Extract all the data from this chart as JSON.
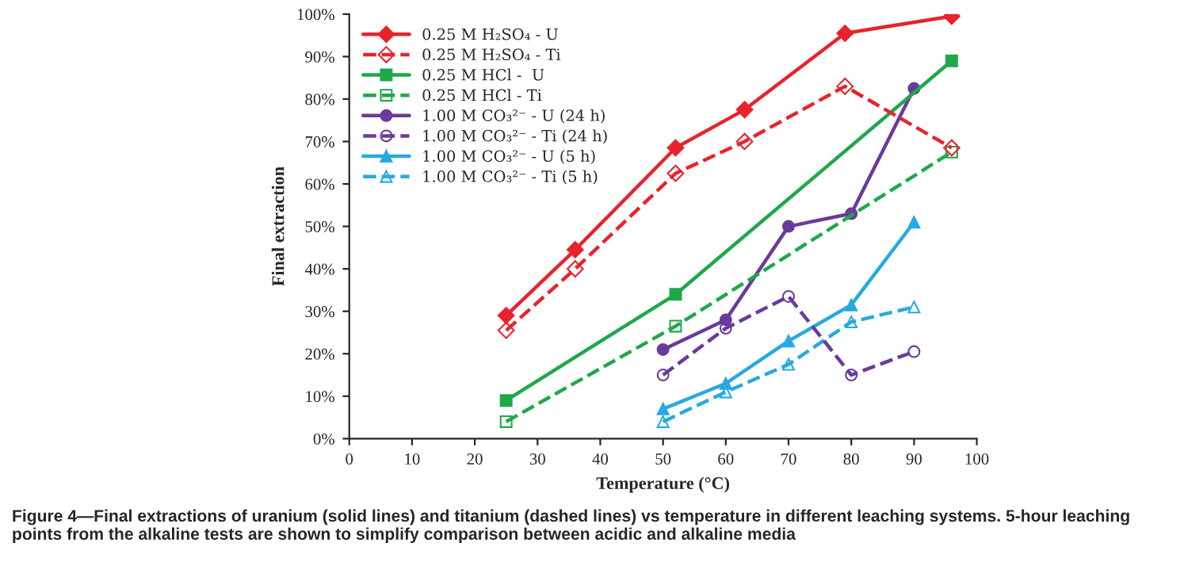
{
  "chart_data": {
    "type": "line",
    "xlabel": "Temperature (°C)",
    "ylabel": "Final extraction",
    "xlim": [
      0,
      100
    ],
    "xticks": [
      0,
      10,
      20,
      30,
      40,
      50,
      60,
      70,
      80,
      90,
      100
    ],
    "ylim": [
      0,
      100
    ],
    "yticks": [
      {
        "value": 0,
        "label": "0%"
      },
      {
        "value": 10,
        "label": "10%"
      },
      {
        "value": 20,
        "label": "20%"
      },
      {
        "value": 30,
        "label": "30%"
      },
      {
        "value": 40,
        "label": "40%"
      },
      {
        "value": 50,
        "label": "50%"
      },
      {
        "value": 60,
        "label": "60%"
      },
      {
        "value": 70,
        "label": "70%"
      },
      {
        "value": 80,
        "label": "80%"
      },
      {
        "value": 90,
        "label": "90%"
      },
      {
        "value": 100,
        "label": "100%"
      }
    ],
    "grid": false,
    "legend": "top left",
    "series": [
      {
        "name": "0.25 M H₂SO₄ - U",
        "color": "#e8232b",
        "marker": "diamond",
        "line_style": "solid",
        "x": [
          25,
          36,
          52,
          63,
          79,
          96
        ],
        "values": [
          29,
          44.5,
          68.5,
          77.5,
          95.5,
          99.5
        ]
      },
      {
        "name": "0.25 M H₂SO₄ - Ti",
        "color": "#e8232b",
        "marker": "diamond",
        "line_style": "dashed",
        "x": [
          25,
          36,
          52,
          63,
          79,
          96
        ],
        "values": [
          25.5,
          40,
          62.5,
          70,
          83,
          68.5
        ]
      },
      {
        "name": "0.25 M HCl -  U",
        "color": "#1fa84a",
        "marker": "square",
        "line_style": "solid",
        "x": [
          25,
          52,
          96
        ],
        "values": [
          9,
          34,
          89
        ]
      },
      {
        "name": "0.25 M HCl - Ti",
        "color": "#1fa84a",
        "marker": "square",
        "line_style": "dashed",
        "x": [
          25,
          52,
          96
        ],
        "values": [
          4,
          26.5,
          67.5
        ]
      },
      {
        "name": "1.00 M CO₃²⁻ - U (24 h)",
        "color": "#6a3a9c",
        "marker": "circle",
        "line_style": "solid",
        "x": [
          50,
          60,
          70,
          80,
          90
        ],
        "values": [
          21,
          28,
          50,
          53,
          82.5
        ]
      },
      {
        "name": "1.00 M CO₃²⁻ - Ti (24 h)",
        "color": "#6a3a9c",
        "marker": "circle",
        "line_style": "dashed",
        "x": [
          50,
          60,
          70,
          80,
          90
        ],
        "values": [
          15,
          26,
          33.5,
          15,
          20.5
        ]
      },
      {
        "name": "1.00 M CO₃²⁻ - U (5 h)",
        "color": "#27a9e1",
        "marker": "triangle",
        "line_style": "solid",
        "x": [
          50,
          60,
          70,
          80,
          90
        ],
        "values": [
          7,
          13,
          23,
          31.5,
          51
        ]
      },
      {
        "name": "1.00 M CO₃²⁻ - Ti (5 h)",
        "color": "#27a9e1",
        "marker": "triangle",
        "line_style": "dashed",
        "x": [
          50,
          60,
          70,
          80,
          90
        ],
        "values": [
          4,
          11,
          17.5,
          27.5,
          31
        ]
      }
    ],
    "annotations": [
      "Figure 4—Final extractions of uranium (solid lines) and titanium (dashed lines) vs temperature in different leaching systems. 5-hour leaching points from the alkaline tests are shown to simplify comparison between acidic and alkaline media"
    ]
  }
}
